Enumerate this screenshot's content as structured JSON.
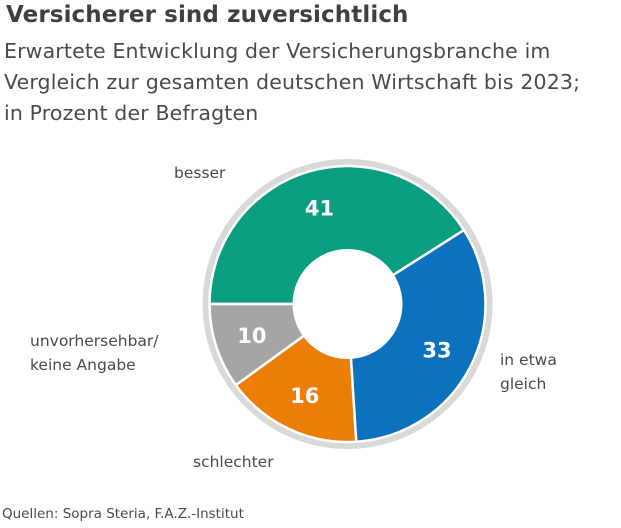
{
  "chart_data": {
    "type": "pie",
    "variant": "donut",
    "title": "Versicherer sind zuversichtlich",
    "subtitle_lines": [
      "Erwartete Entwicklung der Versicherungsbranche im",
      "Vergleich zur gesamten deutschen Wirtschaft bis 2023;",
      "in Prozent der Befragten"
    ],
    "unit": "%",
    "slices": [
      {
        "name": "besser",
        "label_lines": [
          "besser"
        ],
        "value": 41,
        "color": "#0a9e80"
      },
      {
        "name": "in etwa gleich",
        "label_lines": [
          "in etwa",
          "gleich"
        ],
        "value": 33,
        "color": "#0d72be"
      },
      {
        "name": "schlechter",
        "label_lines": [
          "schlechter"
        ],
        "value": 16,
        "color": "#ec7d07"
      },
      {
        "name": "unvorhersehbar/keine Angabe",
        "label_lines": [
          "unvorhersehbar/",
          "keine Angabe"
        ],
        "value": 10,
        "color": "#a5a5a6"
      }
    ],
    "start_angle_deg": 270,
    "direction": "clockwise",
    "legend": "none (direct labels)",
    "source": "Quellen: Sopra Steria, F.A.Z.-Institut"
  },
  "ring_color": "#d9d9d9"
}
